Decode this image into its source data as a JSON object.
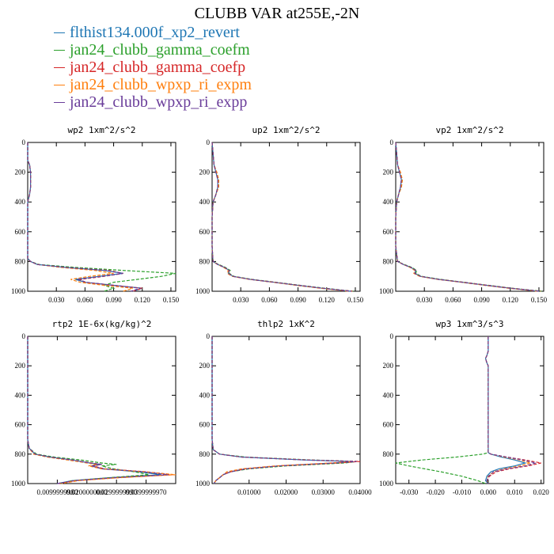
{
  "title": "CLUBB VAR at255E,-2N",
  "legend": [
    {
      "name": "flthist134.000f_xp2_revert",
      "color": "#1f77b4"
    },
    {
      "name": "jan24_clubb_gamma_coefm",
      "color": "#2ca02c"
    },
    {
      "name": "jan24_clubb_gamma_coefp",
      "color": "#d62728"
    },
    {
      "name": "jan24_clubb_wpxp_ri_expm",
      "color": "#ff7f0e"
    },
    {
      "name": "jan24_clubb_wpxp_ri_expp",
      "color": "#6a3d9a"
    }
  ],
  "chart_data": [
    {
      "type": "line",
      "title": "wp2  1xm^2/s^2",
      "xlim": [
        0,
        0.155
      ],
      "ylim": [
        1000,
        0
      ],
      "xticks": [
        "0.030",
        "0.060",
        "0.090",
        "0.120",
        "0.150"
      ],
      "xtick_values": [
        0.03,
        0.06,
        0.09,
        0.12,
        0.15
      ],
      "yticks": [
        "0",
        "200",
        "400",
        "600",
        "800",
        "1000"
      ],
      "ytick_values": [
        0,
        200,
        400,
        600,
        800,
        1000
      ],
      "y": [
        0,
        120,
        150,
        200,
        250,
        300,
        350,
        400,
        500,
        600,
        700,
        780,
        800,
        820,
        840,
        860,
        880,
        900,
        920,
        940,
        960,
        980,
        1000
      ],
      "series": [
        {
          "color": "#1f77b4",
          "x": [
            0,
            0,
            0.002,
            0.003,
            0.003,
            0.003,
            0.002,
            0,
            0,
            0,
            0,
            0,
            0.003,
            0.01,
            0.04,
            0.08,
            0.1,
            0.075,
            0.05,
            0.06,
            0.09,
            0.12,
            0.11
          ]
        },
        {
          "color": "#2ca02c",
          "x": [
            0,
            0,
            0.002,
            0.003,
            0.003,
            0.003,
            0.002,
            0,
            0,
            0,
            0,
            0,
            0.003,
            0.012,
            0.05,
            0.1,
            0.155,
            0.14,
            0.115,
            0.09,
            0.08,
            0.09,
            0.08
          ]
        },
        {
          "color": "#d62728",
          "x": [
            0,
            0,
            0.002,
            0.003,
            0.003,
            0.003,
            0.002,
            0,
            0,
            0,
            0,
            0,
            0.003,
            0.01,
            0.04,
            0.085,
            0.1,
            0.08,
            0.055,
            0.06,
            0.09,
            0.12,
            0.11
          ]
        },
        {
          "color": "#ff7f0e",
          "x": [
            0,
            0,
            0.002,
            0.003,
            0.003,
            0.003,
            0.002,
            0,
            0,
            0,
            0,
            0,
            0.003,
            0.01,
            0.035,
            0.07,
            0.09,
            0.065,
            0.045,
            0.055,
            0.08,
            0.11,
            0.1
          ]
        },
        {
          "color": "#6a3d9a",
          "x": [
            0,
            0,
            0.002,
            0.003,
            0.003,
            0.003,
            0.002,
            0,
            0,
            0,
            0,
            0,
            0.003,
            0.01,
            0.04,
            0.082,
            0.1,
            0.078,
            0.052,
            0.062,
            0.09,
            0.118,
            0.108
          ]
        }
      ]
    },
    {
      "type": "line",
      "title": "up2  1xm^2/s^2",
      "xlim": [
        0,
        0.155
      ],
      "ylim": [
        1000,
        0
      ],
      "xticks": [
        "0.030",
        "0.060",
        "0.090",
        "0.120",
        "0.150"
      ],
      "xtick_values": [
        0.03,
        0.06,
        0.09,
        0.12,
        0.15
      ],
      "yticks": [
        "0",
        "200",
        "400",
        "600",
        "800",
        "1000"
      ],
      "ytick_values": [
        0,
        200,
        400,
        600,
        800,
        1000
      ],
      "y": [
        0,
        150,
        200,
        250,
        300,
        350,
        400,
        500,
        600,
        700,
        800,
        820,
        840,
        860,
        880,
        900,
        920,
        940,
        960,
        980,
        1000
      ],
      "series": [
        {
          "color": "#1f77b4",
          "x": [
            0,
            0.002,
            0.004,
            0.006,
            0.006,
            0.004,
            0.001,
            0,
            0,
            0,
            0.001,
            0.006,
            0.013,
            0.018,
            0.017,
            0.022,
            0.04,
            0.065,
            0.09,
            0.115,
            0.145
          ]
        },
        {
          "color": "#2ca02c",
          "x": [
            0,
            0.002,
            0.004,
            0.007,
            0.006,
            0.004,
            0.001,
            0,
            0,
            0,
            0.001,
            0.007,
            0.014,
            0.019,
            0.018,
            0.023,
            0.042,
            0.067,
            0.092,
            0.118,
            0.148
          ]
        },
        {
          "color": "#d62728",
          "x": [
            0,
            0.002,
            0.004,
            0.006,
            0.006,
            0.004,
            0.001,
            0,
            0,
            0,
            0.001,
            0.006,
            0.013,
            0.018,
            0.017,
            0.022,
            0.04,
            0.066,
            0.091,
            0.116,
            0.147
          ]
        },
        {
          "color": "#ff7f0e",
          "x": [
            0,
            0.002,
            0.005,
            0.007,
            0.007,
            0.004,
            0.001,
            0,
            0,
            0,
            0.001,
            0.006,
            0.012,
            0.017,
            0.016,
            0.021,
            0.039,
            0.064,
            0.088,
            0.113,
            0.143
          ]
        },
        {
          "color": "#6a3d9a",
          "x": [
            0,
            0.002,
            0.004,
            0.006,
            0.006,
            0.004,
            0.001,
            0,
            0,
            0,
            0.001,
            0.006,
            0.013,
            0.018,
            0.017,
            0.022,
            0.04,
            0.065,
            0.09,
            0.116,
            0.146
          ]
        }
      ]
    },
    {
      "type": "line",
      "title": "vp2  1xm^2/s^2",
      "xlim": [
        0,
        0.155
      ],
      "ylim": [
        1000,
        0
      ],
      "xticks": [
        "0.030",
        "0.060",
        "0.090",
        "0.120",
        "0.150"
      ],
      "xtick_values": [
        0.03,
        0.06,
        0.09,
        0.12,
        0.15
      ],
      "yticks": [
        "0",
        "200",
        "400",
        "600",
        "800",
        "1000"
      ],
      "ytick_values": [
        0,
        200,
        400,
        600,
        800,
        1000
      ],
      "y": [
        0,
        150,
        200,
        250,
        300,
        350,
        400,
        500,
        600,
        700,
        800,
        820,
        840,
        860,
        880,
        900,
        920,
        940,
        960,
        980,
        1000
      ],
      "series": [
        {
          "color": "#1f77b4",
          "x": [
            0,
            0.002,
            0.004,
            0.006,
            0.005,
            0.003,
            0.001,
            0,
            0,
            0,
            0.002,
            0.008,
            0.016,
            0.021,
            0.02,
            0.026,
            0.045,
            0.07,
            0.095,
            0.12,
            0.15
          ]
        },
        {
          "color": "#2ca02c",
          "x": [
            0,
            0.002,
            0.004,
            0.007,
            0.006,
            0.003,
            0.001,
            0,
            0,
            0,
            0.002,
            0.009,
            0.017,
            0.022,
            0.021,
            0.027,
            0.047,
            0.072,
            0.097,
            0.122,
            0.153
          ]
        },
        {
          "color": "#d62728",
          "x": [
            0,
            0.002,
            0.004,
            0.006,
            0.005,
            0.003,
            0.001,
            0,
            0,
            0,
            0.002,
            0.008,
            0.016,
            0.021,
            0.02,
            0.026,
            0.045,
            0.071,
            0.096,
            0.121,
            0.152
          ]
        },
        {
          "color": "#ff7f0e",
          "x": [
            0,
            0.002,
            0.005,
            0.007,
            0.006,
            0.003,
            0.001,
            0,
            0,
            0,
            0.002,
            0.008,
            0.015,
            0.02,
            0.019,
            0.025,
            0.044,
            0.069,
            0.093,
            0.118,
            0.148
          ]
        },
        {
          "color": "#6a3d9a",
          "x": [
            0,
            0.002,
            0.004,
            0.006,
            0.005,
            0.003,
            0.001,
            0,
            0,
            0,
            0.002,
            0.008,
            0.016,
            0.021,
            0.02,
            0.026,
            0.045,
            0.07,
            0.095,
            0.12,
            0.151
          ]
        }
      ]
    },
    {
      "type": "line",
      "title": "rtp2  1E-6x(kg/kg)^2",
      "xlim": [
        0,
        1
      ],
      "ylim": [
        1000,
        0
      ],
      "xticks": [
        "0.0099999980",
        "0.0200000000",
        "0.0299999990",
        "0.0399999970"
      ],
      "xtick_values": [
        0.2,
        0.4,
        0.6,
        0.8
      ],
      "yticks": [
        "0",
        "200",
        "400",
        "600",
        "800",
        "1000"
      ],
      "ytick_values": [
        0,
        200,
        400,
        600,
        800,
        1000
      ],
      "y": [
        0,
        600,
        700,
        760,
        800,
        820,
        840,
        860,
        870,
        880,
        900,
        920,
        940,
        960,
        980,
        1000
      ],
      "series": [
        {
          "color": "#1f77b4",
          "x": [
            0,
            0,
            0,
            0.01,
            0.05,
            0.15,
            0.3,
            0.42,
            0.5,
            0.43,
            0.5,
            0.75,
            0.9,
            0.55,
            0.3,
            0.2
          ]
        },
        {
          "color": "#2ca02c",
          "x": [
            0,
            0,
            0,
            0.01,
            0.06,
            0.18,
            0.36,
            0.5,
            0.6,
            0.5,
            0.58,
            0.72,
            0.82,
            0.55,
            0.3,
            0.22
          ]
        },
        {
          "color": "#d62728",
          "x": [
            0,
            0,
            0,
            0.01,
            0.05,
            0.15,
            0.3,
            0.43,
            0.5,
            0.44,
            0.52,
            0.8,
            0.98,
            0.6,
            0.32,
            0.21
          ]
        },
        {
          "color": "#ff7f0e",
          "x": [
            0,
            0,
            0,
            0.01,
            0.04,
            0.13,
            0.27,
            0.4,
            0.47,
            0.41,
            0.5,
            0.78,
            1.0,
            0.62,
            0.34,
            0.23
          ]
        },
        {
          "color": "#6a3d9a",
          "x": [
            0,
            0,
            0,
            0.01,
            0.05,
            0.15,
            0.3,
            0.42,
            0.5,
            0.43,
            0.51,
            0.78,
            0.95,
            0.58,
            0.31,
            0.2
          ]
        }
      ]
    },
    {
      "type": "line",
      "title": "thlp2  1xK^2",
      "xlim": [
        0,
        0.04
      ],
      "ylim": [
        1000,
        0
      ],
      "xticks": [
        "0.01000",
        "0.02000",
        "0.03000",
        "0.04000"
      ],
      "xtick_values": [
        0.01,
        0.02,
        0.03,
        0.04
      ],
      "yticks": [
        "0",
        "200",
        "400",
        "600",
        "800",
        "1000"
      ],
      "ytick_values": [
        0,
        200,
        400,
        600,
        800,
        1000
      ],
      "y": [
        0,
        600,
        700,
        770,
        800,
        820,
        840,
        850,
        860,
        880,
        900,
        920,
        940,
        960,
        980,
        1000
      ],
      "series": [
        {
          "color": "#1f77b4",
          "x": [
            0,
            0,
            0,
            0.0003,
            0.002,
            0.008,
            0.025,
            0.038,
            0.033,
            0.018,
            0.009,
            0.005,
            0.003,
            0.002,
            0.001,
            0.0005
          ]
        },
        {
          "color": "#2ca02c",
          "x": [
            0,
            0,
            0,
            0.0003,
            0.002,
            0.009,
            0.027,
            0.039,
            0.036,
            0.02,
            0.01,
            0.005,
            0.003,
            0.002,
            0.001,
            0.0005
          ]
        },
        {
          "color": "#d62728",
          "x": [
            0,
            0,
            0,
            0.0003,
            0.002,
            0.008,
            0.026,
            0.04,
            0.034,
            0.018,
            0.009,
            0.005,
            0.003,
            0.002,
            0.001,
            0.0005
          ]
        },
        {
          "color": "#ff7f0e",
          "x": [
            0,
            0,
            0,
            0.0003,
            0.002,
            0.008,
            0.025,
            0.038,
            0.032,
            0.017,
            0.008,
            0.004,
            0.003,
            0.002,
            0.001,
            0.0005
          ]
        },
        {
          "color": "#6a3d9a",
          "x": [
            0,
            0,
            0,
            0.0003,
            0.002,
            0.008,
            0.025,
            0.039,
            0.033,
            0.018,
            0.009,
            0.005,
            0.003,
            0.002,
            0.001,
            0.0005
          ]
        }
      ]
    },
    {
      "type": "line",
      "title": "wp3  1xm^3/s^3",
      "xlim": [
        -0.035,
        0.021
      ],
      "ylim": [
        1000,
        0
      ],
      "xticks": [
        "-0.030",
        "-0.020",
        "-0.010",
        "0.000",
        "0.010",
        "0.020"
      ],
      "xtick_values": [
        -0.03,
        -0.02,
        -0.01,
        0,
        0.01,
        0.02
      ],
      "yticks": [
        "0",
        "200",
        "400",
        "600",
        "800",
        "1000"
      ],
      "ytick_values": [
        0,
        200,
        400,
        600,
        800,
        1000
      ],
      "y": [
        0,
        100,
        130,
        150,
        180,
        200,
        300,
        500,
        700,
        790,
        800,
        820,
        840,
        860,
        880,
        900,
        920,
        950,
        980,
        1000
      ],
      "series": [
        {
          "color": "#1f77b4",
          "x": [
            0,
            0,
            -0.0005,
            -0.001,
            -0.0005,
            0,
            0,
            0,
            0,
            0,
            0.001,
            0.005,
            0.01,
            0.014,
            0.01,
            0.004,
            0.001,
            -0.0005,
            -0.001,
            0
          ]
        },
        {
          "color": "#2ca02c",
          "x": [
            0,
            0,
            -0.0005,
            -0.001,
            -0.0005,
            0,
            0,
            0,
            0,
            0,
            -0.002,
            -0.012,
            -0.025,
            -0.035,
            -0.03,
            -0.024,
            -0.018,
            -0.01,
            -0.004,
            -0.001
          ]
        },
        {
          "color": "#d62728",
          "x": [
            0,
            0,
            -0.0005,
            -0.001,
            -0.0005,
            0,
            0,
            0,
            0,
            0,
            0.001,
            0.007,
            0.014,
            0.02,
            0.015,
            0.008,
            0.003,
            0.0005,
            -0.0005,
            0
          ]
        },
        {
          "color": "#ff7f0e",
          "x": [
            0,
            0,
            -0.0005,
            -0.001,
            -0.0005,
            0,
            0,
            0,
            0,
            0,
            0.001,
            0.006,
            0.012,
            0.016,
            0.012,
            0.006,
            0.002,
            0,
            -0.0005,
            0
          ]
        },
        {
          "color": "#6a3d9a",
          "x": [
            0,
            0,
            -0.0005,
            -0.001,
            -0.0005,
            0,
            0,
            0,
            0,
            0,
            0.001,
            0.007,
            0.013,
            0.018,
            0.014,
            0.007,
            0.002,
            0.0002,
            -0.0005,
            0
          ]
        }
      ]
    }
  ]
}
